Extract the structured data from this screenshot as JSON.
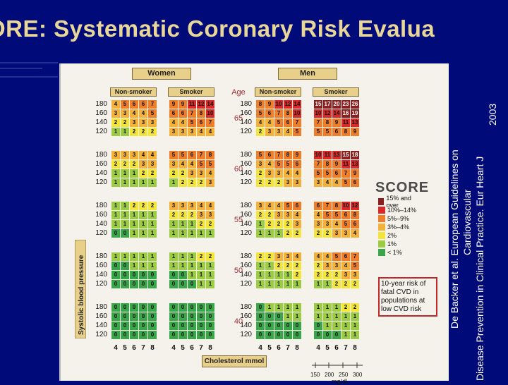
{
  "slide_title": "ORE: Systematic Coronary Risk Evalua",
  "citation": {
    "line1": "De Backer et al.  European Guidelines on",
    "line2": "Cardiovascular",
    "line3": "Disease Prevention in Clinical Practice. Eur Heart J",
    "line4": "2003"
  },
  "chart": {
    "sex_headers": [
      "Women",
      "Men"
    ],
    "smoking_headers": [
      "Non-smoker",
      "Smoker",
      "Non-smoker",
      "Smoker"
    ],
    "age_header": "Age",
    "ages": [
      "65",
      "60",
      "55",
      "50",
      "40"
    ],
    "bp_values": [
      "180",
      "160",
      "140",
      "120"
    ],
    "y_axis_label": "Systolic blood pressure",
    "cholesterol_ticks": [
      "4",
      "5",
      "6",
      "7",
      "8"
    ],
    "cholesterol_label": "Cholesterol mmol",
    "mgdl_ticks": [
      "150",
      "200",
      "250",
      "300"
    ],
    "mgdl_label": "mg/dl",
    "logo": "SCORE",
    "legend": [
      {
        "label": "15% and over",
        "color": "#8a1f1f"
      },
      {
        "label": "10%–14%",
        "color": "#d92a2a"
      },
      {
        "label": "5%–9%",
        "color": "#ee7e2a"
      },
      {
        "label": "3%–4%",
        "color": "#f4b23a"
      },
      {
        "label": "2%",
        "color": "#f3e53c"
      },
      {
        "label": "1%",
        "color": "#9ccb44"
      },
      {
        "label": "< 1%",
        "color": "#3aa64a"
      }
    ],
    "note": "10-year risk of fatal CVD in populations at low CVD risk",
    "blocks": [
      [
        [
          [
            4,
            5,
            6,
            6,
            7
          ],
          [
            3,
            3,
            4,
            4,
            5
          ],
          [
            2,
            2,
            3,
            3,
            3
          ],
          [
            1,
            1,
            2,
            2,
            2
          ]
        ],
        [
          [
            9,
            9,
            11,
            12,
            14
          ],
          [
            6,
            6,
            7,
            8,
            10
          ],
          [
            4,
            4,
            5,
            6,
            7
          ],
          [
            3,
            3,
            3,
            4,
            4
          ]
        ],
        [
          [
            8,
            9,
            10,
            12,
            14
          ],
          [
            5,
            6,
            7,
            8,
            10
          ],
          [
            4,
            4,
            5,
            6,
            7
          ],
          [
            2,
            3,
            3,
            4,
            5
          ]
        ],
        [
          [
            15,
            17,
            20,
            23,
            26
          ],
          [
            10,
            12,
            14,
            16,
            19
          ],
          [
            7,
            8,
            9,
            11,
            13
          ],
          [
            5,
            5,
            6,
            8,
            9
          ]
        ]
      ],
      [
        [
          [
            3,
            3,
            3,
            4,
            4
          ],
          [
            2,
            2,
            2,
            3,
            3
          ],
          [
            1,
            1,
            1,
            2,
            2
          ],
          [
            1,
            1,
            1,
            1,
            1
          ]
        ],
        [
          [
            5,
            5,
            6,
            7,
            8
          ],
          [
            3,
            4,
            4,
            5,
            5
          ],
          [
            2,
            2,
            3,
            3,
            4
          ],
          [
            1,
            2,
            2,
            2,
            3
          ]
        ],
        [
          [
            5,
            6,
            7,
            8,
            9
          ],
          [
            3,
            4,
            5,
            5,
            6
          ],
          [
            2,
            3,
            3,
            4,
            4
          ],
          [
            2,
            2,
            2,
            3,
            3
          ]
        ],
        [
          [
            10,
            11,
            13,
            15,
            18
          ],
          [
            7,
            8,
            9,
            11,
            13
          ],
          [
            5,
            5,
            6,
            7,
            9
          ],
          [
            3,
            4,
            4,
            5,
            6
          ]
        ]
      ],
      [
        [
          [
            1,
            1,
            2,
            2,
            2
          ],
          [
            1,
            1,
            1,
            1,
            1
          ],
          [
            1,
            1,
            1,
            1,
            1
          ],
          [
            0,
            0,
            1,
            1,
            1
          ]
        ],
        [
          [
            3,
            3,
            3,
            4,
            4
          ],
          [
            2,
            2,
            2,
            3,
            3
          ],
          [
            1,
            1,
            1,
            2,
            2
          ],
          [
            1,
            1,
            1,
            1,
            1
          ]
        ],
        [
          [
            3,
            4,
            4,
            5,
            6
          ],
          [
            2,
            2,
            3,
            3,
            4
          ],
          [
            1,
            2,
            2,
            2,
            3
          ],
          [
            1,
            1,
            1,
            2,
            2
          ]
        ],
        [
          [
            6,
            7,
            8,
            10,
            12
          ],
          [
            4,
            5,
            5,
            6,
            8
          ],
          [
            3,
            3,
            4,
            5,
            6
          ],
          [
            2,
            2,
            3,
            3,
            4
          ]
        ]
      ],
      [
        [
          [
            1,
            1,
            1,
            1,
            1
          ],
          [
            0,
            0,
            1,
            1,
            1
          ],
          [
            0,
            0,
            0,
            0,
            0
          ],
          [
            0,
            0,
            0,
            0,
            0
          ]
        ],
        [
          [
            1,
            1,
            1,
            2,
            2
          ],
          [
            1,
            1,
            1,
            1,
            1
          ],
          [
            0,
            0,
            1,
            1,
            1
          ],
          [
            0,
            0,
            0,
            1,
            1
          ]
        ],
        [
          [
            2,
            2,
            3,
            3,
            4
          ],
          [
            1,
            1,
            2,
            2,
            2
          ],
          [
            1,
            1,
            1,
            1,
            2
          ],
          [
            1,
            1,
            1,
            1,
            1
          ]
        ],
        [
          [
            4,
            4,
            5,
            6,
            7
          ],
          [
            2,
            3,
            3,
            4,
            5
          ],
          [
            2,
            2,
            2,
            3,
            3
          ],
          [
            1,
            1,
            2,
            2,
            2
          ]
        ]
      ],
      [
        [
          [
            0,
            0,
            0,
            0,
            0
          ],
          [
            0,
            0,
            0,
            0,
            0
          ],
          [
            0,
            0,
            0,
            0,
            0
          ],
          [
            0,
            0,
            0,
            0,
            0
          ]
        ],
        [
          [
            0,
            0,
            0,
            0,
            0
          ],
          [
            0,
            0,
            0,
            0,
            0
          ],
          [
            0,
            0,
            0,
            0,
            0
          ],
          [
            0,
            0,
            0,
            0,
            0
          ]
        ],
        [
          [
            0,
            1,
            1,
            1,
            1
          ],
          [
            0,
            0,
            0,
            1,
            1
          ],
          [
            0,
            0,
            0,
            0,
            0
          ],
          [
            0,
            0,
            0,
            0,
            0
          ]
        ],
        [
          [
            1,
            1,
            1,
            2,
            2
          ],
          [
            1,
            1,
            1,
            1,
            1
          ],
          [
            0,
            1,
            1,
            1,
            1
          ],
          [
            0,
            0,
            0,
            1,
            1
          ]
        ]
      ]
    ]
  }
}
